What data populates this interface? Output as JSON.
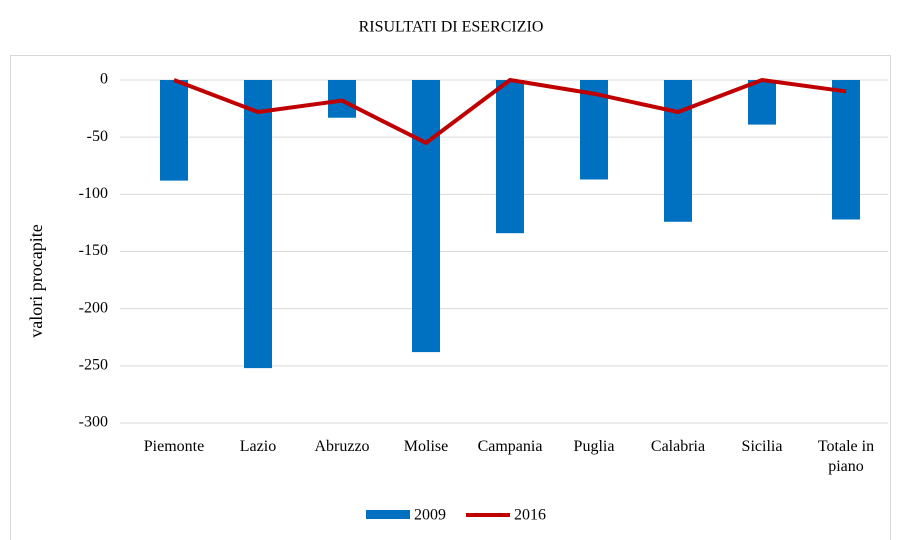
{
  "chart_data": {
    "type": "bar_line",
    "title": "RISULTATI DI ESERCIZIO",
    "y_label": "valori procapite",
    "categories": [
      "Piemonte",
      "Lazio",
      "Abruzzo",
      "Molise",
      "Campania",
      "Puglia",
      "Calabria",
      "Sicilia",
      "Totale in piano"
    ],
    "series": [
      {
        "name": "2009",
        "type": "bar",
        "color": "#0070c0",
        "values": [
          -88,
          -252,
          -33,
          -238,
          -134,
          -87,
          -124,
          -39,
          -122
        ]
      },
      {
        "name": "2016",
        "type": "line",
        "color": "#c00000",
        "values": [
          0,
          -28,
          -18,
          -55,
          0,
          -12,
          -28,
          0,
          -10
        ]
      }
    ],
    "ylim": [
      -300,
      0
    ],
    "yticks": [
      0,
      -50,
      -100,
      -150,
      -200,
      -250,
      -300
    ],
    "grid": true,
    "legend": "bottom"
  }
}
